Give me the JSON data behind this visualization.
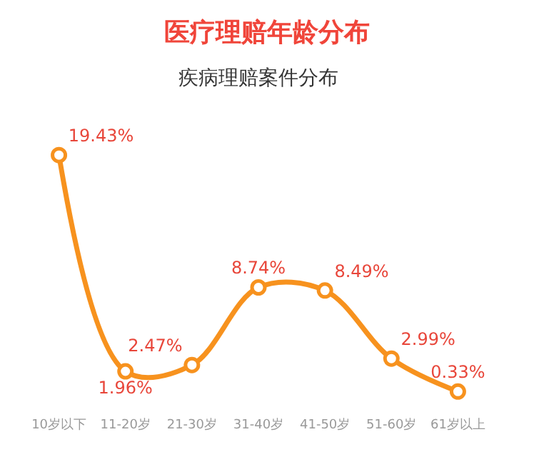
{
  "chart_data": {
    "type": "line",
    "title": "医疗理赔年龄分布",
    "subtitle": "疾病理赔案件分布",
    "categories": [
      "10岁以下",
      "11-20岁",
      "21-30岁",
      "31-40岁",
      "41-50岁",
      "51-60岁",
      "61岁以上"
    ],
    "series": [
      {
        "color": "#f7921e",
        "values": [
          19.43,
          1.96,
          2.47,
          8.74,
          8.49,
          2.99,
          0.33
        ],
        "value_labels": [
          "19.43%",
          "1.96%",
          "2.47%",
          "8.74%",
          "8.49%",
          "2.99%",
          "0.33%"
        ]
      }
    ],
    "marker": "circle",
    "line_style": "solid",
    "legend": false,
    "tick_labels": "x"
  }
}
